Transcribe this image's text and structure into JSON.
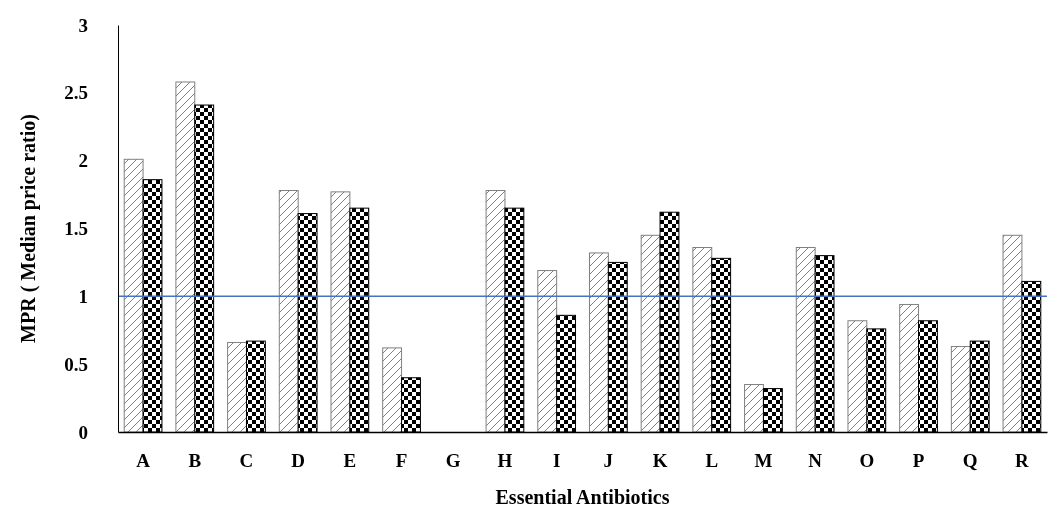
{
  "chart_data": {
    "type": "bar",
    "xlabel": "Essential Antibiotics",
    "ylabel": "MPR ( Median price ratio)",
    "categories": [
      "A",
      "B",
      "C",
      "D",
      "E",
      "F",
      "G",
      "H",
      "I",
      "J",
      "K",
      "L",
      "M",
      "N",
      "O",
      "P",
      "Q",
      "R"
    ],
    "series": [
      {
        "color": "#808080",
        "values": [
          2.01,
          2.58,
          0.66,
          1.78,
          1.77,
          0.62,
          null,
          1.78,
          1.19,
          1.32,
          1.45,
          1.36,
          0.35,
          1.36,
          0.82,
          0.94,
          0.63,
          1.45
        ]
      },
      {
        "color": "#000000",
        "values": [
          1.86,
          2.41,
          0.67,
          1.61,
          1.65,
          0.4,
          null,
          1.65,
          0.86,
          1.25,
          1.62,
          1.28,
          0.32,
          1.3,
          0.76,
          0.82,
          0.67,
          1.11
        ]
      }
    ],
    "ylim": [
      0,
      3
    ],
    "yticks": [
      0,
      0.5,
      1,
      1.5,
      2,
      2.5,
      3
    ],
    "grid": false,
    "ref_lines": [
      {
        "axis": "y",
        "value": 1,
        "color": "#4472c4"
      }
    ]
  }
}
